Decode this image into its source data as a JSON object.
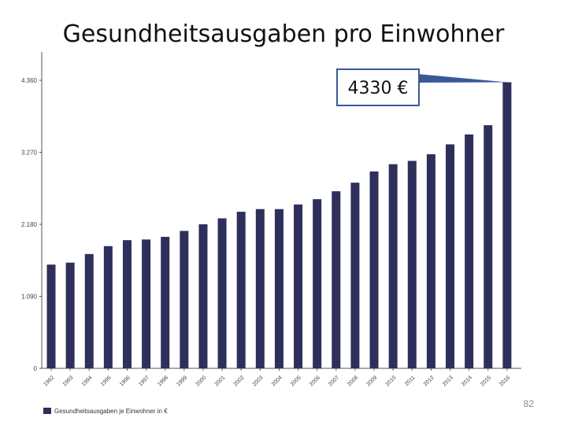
{
  "slide": {
    "title": "Gesundheitsausgaben pro Einwohner",
    "page_number": "82"
  },
  "callout": {
    "text": "4330 €"
  },
  "colors": {
    "bar": "#2e2f5b",
    "callout_border": "#3b5998",
    "axis": "#555555"
  },
  "chart_data": {
    "type": "bar",
    "categories": [
      "1992",
      "1993",
      "1994",
      "1995",
      "1996",
      "1997",
      "1998",
      "1999",
      "2000",
      "2001",
      "2002",
      "2003",
      "2004",
      "2005",
      "2006",
      "2007",
      "2008",
      "2009",
      "2010",
      "2011",
      "2012",
      "2013",
      "2014",
      "2015",
      "2016"
    ],
    "series": [
      {
        "name": "Gesundheitsausgaben je Einwohner in €",
        "values": [
          1570,
          1600,
          1730,
          1850,
          1940,
          1950,
          1990,
          2080,
          2180,
          2270,
          2370,
          2410,
          2410,
          2480,
          2560,
          2680,
          2810,
          2980,
          3090,
          3140,
          3240,
          3390,
          3540,
          3680,
          4330
        ]
      }
    ],
    "yticks": [
      0,
      1090,
      2180,
      3270,
      4360
    ],
    "ytick_labels": [
      "0",
      "1.090",
      "2.180",
      "3.270",
      "4.360"
    ],
    "ylim": [
      0,
      4360
    ],
    "legend": {
      "position": "bottom-left",
      "label": "Gesundheitsausgaben je Einwohner in €"
    },
    "grid": false
  }
}
